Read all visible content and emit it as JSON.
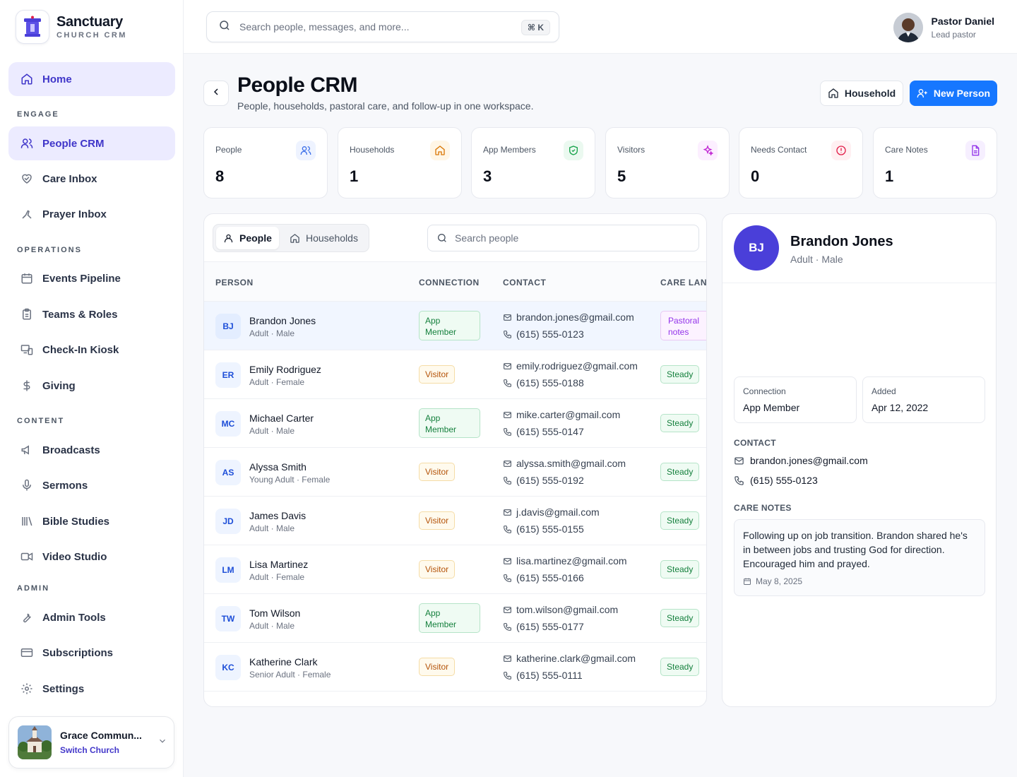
{
  "brand": {
    "name": "Sanctuary",
    "sub": "CHURCH CRM"
  },
  "nav": {
    "home": "Home",
    "sections": {
      "engage": "ENGAGE",
      "operations": "OPERATIONS",
      "content": "CONTENT",
      "admin": "ADMIN"
    },
    "people_crm": "People CRM",
    "care_inbox": "Care Inbox",
    "prayer_inbox": "Prayer Inbox",
    "events_pipeline": "Events Pipeline",
    "teams_roles": "Teams & Roles",
    "checkin_kiosk": "Check-In Kiosk",
    "giving": "Giving",
    "broadcasts": "Broadcasts",
    "sermons": "Sermons",
    "bible_studies": "Bible Studies",
    "video_studio": "Video Studio",
    "admin_tools": "Admin Tools",
    "subscriptions": "Subscriptions",
    "settings": "Settings"
  },
  "church": {
    "name": "Grace Commun...",
    "switch": "Switch Church"
  },
  "search": {
    "placeholder": "Search people, messages, and more...",
    "shortcut": "⌘ K"
  },
  "user": {
    "name": "Pastor Daniel",
    "role": "Lead pastor"
  },
  "header": {
    "title": "People CRM",
    "subtitle": "People, households, pastoral care, and follow-up in one workspace.",
    "household_button": "Household",
    "new_person_button": "New Person"
  },
  "stats": [
    {
      "label": "People",
      "value": "8",
      "icon": "users-icon",
      "color": "#3b6ee8"
    },
    {
      "label": "Households",
      "value": "1",
      "icon": "home-icon",
      "color": "#d97706"
    },
    {
      "label": "App Members",
      "value": "3",
      "icon": "shield-check-icon",
      "color": "#16a34a"
    },
    {
      "label": "Visitors",
      "value": "5",
      "icon": "sparkles-icon",
      "color": "#c026d3"
    },
    {
      "label": "Needs Contact",
      "value": "0",
      "icon": "alert-circle-icon",
      "color": "#e11d48"
    },
    {
      "label": "Care Notes",
      "value": "1",
      "icon": "file-text-icon",
      "color": "#9333ea"
    }
  ],
  "people_panel": {
    "tabs": {
      "people": "People",
      "households": "Households"
    },
    "search_placeholder": "Search people",
    "columns": {
      "person": "PERSON",
      "connection": "CONNECTION",
      "contact": "CONTACT",
      "care_lane": "CARE LANE"
    },
    "rows": [
      {
        "initials": "BJ",
        "name": "Brandon Jones",
        "meta": "Adult · Male",
        "connection_1": "App",
        "connection_2": "Member",
        "email": "brandon.jones@gmail.com",
        "phone": "(615) 555-0123",
        "lane_1": "Pastoral",
        "lane_2": "notes"
      },
      {
        "initials": "ER",
        "name": "Emily Rodriguez",
        "meta": "Adult · Female",
        "connection": "Visitor",
        "email": "emily.rodriguez@gmail.com",
        "phone": "(615) 555-0188",
        "lane": "Steady"
      },
      {
        "initials": "MC",
        "name": "Michael Carter",
        "meta": "Adult · Male",
        "connection_1": "App",
        "connection_2": "Member",
        "email": "mike.carter@gmail.com",
        "phone": "(615) 555-0147",
        "lane": "Steady"
      },
      {
        "initials": "AS",
        "name": "Alyssa Smith",
        "meta": "Young Adult · Female",
        "connection": "Visitor",
        "email": "alyssa.smith@gmail.com",
        "phone": "(615) 555-0192",
        "lane": "Steady"
      },
      {
        "initials": "JD",
        "name": "James Davis",
        "meta": "Adult · Male",
        "connection": "Visitor",
        "email": "j.davis@gmail.com",
        "phone": "(615) 555-0155",
        "lane": "Steady"
      },
      {
        "initials": "LM",
        "name": "Lisa Martinez",
        "meta": "Adult · Female",
        "connection": "Visitor",
        "email": "lisa.martinez@gmail.com",
        "phone": "(615) 555-0166",
        "lane": "Steady"
      },
      {
        "initials": "TW",
        "name": "Tom Wilson",
        "meta": "Adult · Male",
        "connection_1": "App",
        "connection_2": "Member",
        "email": "tom.wilson@gmail.com",
        "phone": "(615) 555-0177",
        "lane": "Steady"
      },
      {
        "initials": "KC",
        "name": "Katherine Clark",
        "meta": "Senior Adult · Female",
        "connection": "Visitor",
        "email": "katherine.clark@gmail.com",
        "phone": "(615) 555-0111",
        "lane": "Steady"
      }
    ]
  },
  "detail": {
    "initials": "BJ",
    "name": "Brandon Jones",
    "meta": "Adult · Male",
    "connection_label": "Connection",
    "connection_value": "App Member",
    "added_label": "Added",
    "added_value": "Apr 12, 2022",
    "contact_heading": "CONTACT",
    "email": "brandon.jones@gmail.com",
    "phone": "(615) 555-0123",
    "care_heading": "CARE NOTES",
    "note_line_1": "Following up on job transition. Brandon shared he's",
    "note_line_2": "in between jobs and trusting God for direction.",
    "note_line_3": "Encouraged him and prayed.",
    "note_date": "May 8, 2025"
  }
}
